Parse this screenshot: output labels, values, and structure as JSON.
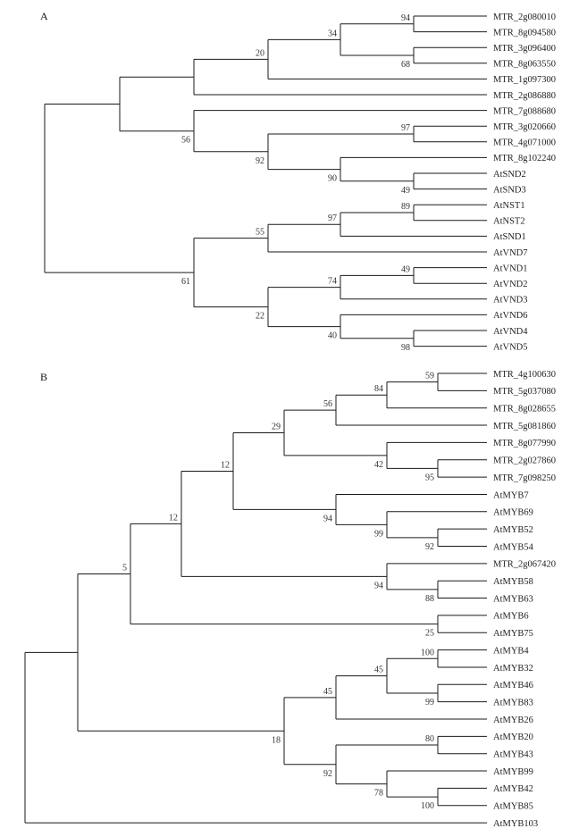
{
  "panels": [
    {
      "label": "A",
      "tips": [
        "MTR_2g080010",
        "MTR_8g094580",
        "MTR_3g096400",
        "MTR_8g063550",
        "MTR_1g097300",
        "MTR_2g086880",
        "MTR_7g088680",
        "MTR_3g020660",
        "MTR_4g071000",
        "MTR_8g102240",
        "AtSND2",
        "AtSND3",
        "AtNST1",
        "AtNST2",
        "AtSND1",
        "AtVND7",
        "AtVND1",
        "AtVND2",
        "AtVND3",
        "AtVND6",
        "AtVND4",
        "AtVND5"
      ],
      "support": [
        "94",
        "68",
        "34",
        "20",
        "97",
        "90",
        "49",
        "92",
        "56",
        "89",
        "97",
        "55",
        "49",
        "74",
        "98",
        "40",
        "22",
        "61"
      ]
    },
    {
      "label": "B",
      "tips": [
        "MTR_4g100630",
        "MTR_5g037080",
        "MTR_8g028655",
        "MTR_5g081860",
        "MTR_8g077990",
        "MTR_2g027860",
        "MTR_7g098250",
        "AtMYB7",
        "AtMYB69",
        "AtMYB52",
        "AtMYB54",
        "MTR_2g067420",
        "AtMYB58",
        "AtMYB63",
        "AtMYB6",
        "AtMYB75",
        "AtMYB4",
        "AtMYB32",
        "AtMYB46",
        "AtMYB83",
        "AtMYB26",
        "AtMYB20",
        "AtMYB43",
        "AtMYB99",
        "AtMYB42",
        "AtMYB85",
        "AtMYB103"
      ],
      "support": [
        "59",
        "84",
        "56",
        "95",
        "42",
        "29",
        "92",
        "99",
        "94",
        "12",
        "88",
        "94",
        "12",
        "25",
        "5",
        "100",
        "99",
        "45",
        "45",
        "80",
        "100",
        "78",
        "92",
        "18"
      ]
    }
  ]
}
